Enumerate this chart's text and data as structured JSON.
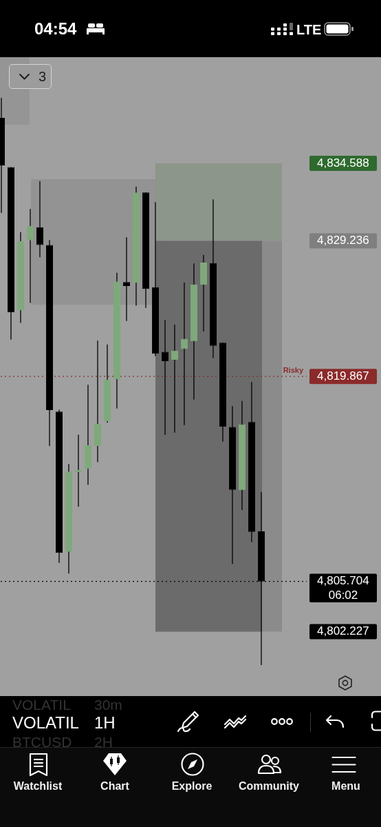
{
  "chart_data": {
    "type": "candlestick",
    "categories": [
      null,
      null,
      null,
      null,
      null,
      null,
      null,
      null,
      null,
      null,
      null,
      null,
      null,
      null,
      null,
      null,
      null,
      null,
      null,
      null,
      null,
      null,
      null,
      null,
      null,
      null,
      null,
      null
    ],
    "ohlc": [
      [
        4837.73,
        4839.11,
        4831.16,
        4834.45
      ],
      [
        4834.32,
        4834.32,
        4822.41,
        4824.29
      ],
      [
        4824.45,
        4829.84,
        4823.57,
        4829.21
      ],
      [
        4829.27,
        4831.43,
        4824.95,
        4830.27
      ],
      [
        4830.16,
        4833.36,
        4828.1,
        4828.95
      ],
      [
        4828.95,
        4829.29,
        4815.05,
        4817.54
      ],
      [
        4817.43,
        4817.57,
        4806.98,
        4807.67
      ],
      [
        4807.74,
        4813.81,
        4806.24,
        4813.29
      ],
      [
        4813.24,
        4815.84,
        4810.86,
        4813.4
      ],
      [
        4813.48,
        4819.29,
        4812.38,
        4815.11
      ],
      [
        4815.06,
        4822.34,
        4813.95,
        4816.59
      ],
      [
        4816.78,
        4822.06,
        4816.67,
        4819.65
      ],
      [
        4819.68,
        4827.03,
        4817.65,
        4826.43
      ],
      [
        4826.38,
        4829.48,
        4823.7,
        4826.11
      ],
      [
        4826.33,
        4832.98,
        4824.76,
        4832.57
      ],
      [
        4832.57,
        4832.57,
        4824.6,
        4825.91
      ],
      [
        4826.03,
        4831.91,
        4821.27,
        4821.43
      ],
      [
        4821.57,
        4823.76,
        4815.83,
        4820.92
      ],
      [
        4821.02,
        4823.45,
        4815.98,
        4821.65
      ],
      [
        4821.76,
        4826.35,
        4816.51,
        4822.47
      ],
      [
        4822.29,
        4827.67,
        4818.27,
        4826.21
      ],
      [
        4826.21,
        4828.25,
        4822.97,
        4827.73
      ],
      [
        4827.7,
        4832.1,
        4821.14,
        4821.98
      ],
      [
        4822.19,
        4822.19,
        4815.36,
        4816.4
      ],
      [
        4816.38,
        4817.81,
        4806.91,
        4812.03
      ],
      [
        4812.0,
        4818.17,
        4810.64,
        4816.55
      ],
      [
        4816.72,
        4819.48,
        4808.41,
        4809.13
      ],
      [
        4809.16,
        4811.87,
        4799.92,
        4805.7
      ]
    ],
    "colors": [
      "#000000",
      "#000000",
      "#7fa97b",
      "#7fa97b",
      "#000000",
      "#000000",
      "#000000",
      "#7fa97b",
      "#7fa97b",
      "#7fa97b",
      "#7fa97b",
      "#7fa97b",
      "#7fa97b",
      "#000000",
      "#7fa97b",
      "#000000",
      "#000000",
      "#000000",
      "#7fa97b",
      "#7fa97b",
      "#7fa97b",
      "#7fa97b",
      "#000000",
      "#000000",
      "#000000",
      "#7fa97b",
      "#000000",
      "#000000"
    ],
    "ylim": [
      4797.78,
      4841.92
    ],
    "yticks": [
      {
        "value": 4802.227,
        "label": "4,802.227"
      },
      {
        "value": 4805.704,
        "label": "4,805.704"
      },
      {
        "value": 4819.867,
        "label": "4,819.867"
      },
      {
        "value": 4829.236,
        "label": "4,829.236"
      },
      {
        "value": 4834.588,
        "label": "4,834.588"
      }
    ],
    "ref_lines": [
      {
        "axis": "y",
        "value": 4819.867,
        "label": "Risky",
        "color": "#8b2a2a",
        "line_style": "dotted"
      },
      {
        "axis": "y",
        "value": 4805.704,
        "color": "#000000",
        "line_style": "dotted"
      }
    ],
    "bands": [
      {
        "axis": "y",
        "from": 4837.25,
        "to": 4841.92,
        "color": "#959595"
      },
      {
        "axis": "y",
        "from": 4824.81,
        "to": 4833.49,
        "color": "#939393"
      },
      {
        "axis": "y",
        "from": 4829.236,
        "to": 4834.588,
        "color": "#8c968a"
      },
      {
        "axis": "y",
        "from": 4802.227,
        "to": 4829.236,
        "color": "#8b8b8b"
      },
      {
        "axis": "y",
        "from": 4802.227,
        "to": 4829.236,
        "color": "#6b6b6b"
      }
    ],
    "annotations": [
      "04:54",
      "LTE",
      "3",
      "VOLATIL",
      "30m",
      "VOLATIL",
      "1H",
      "BTCUSD",
      "2H",
      "Watchlist",
      "Chart",
      "Explore",
      "Community",
      "Menu",
      "06:02"
    ]
  }
}
